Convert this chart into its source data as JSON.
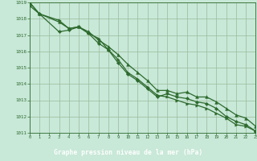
{
  "title": "Graphe pression niveau de la mer (hPa)",
  "bg_color": "#c8e8d8",
  "plot_bg_color": "#c8e8d8",
  "label_bg_color": "#3a7a3a",
  "label_text_color": "#ffffff",
  "line_color": "#2d6a2d",
  "grid_color": "#99bb99",
  "xlim": [
    0,
    23
  ],
  "ylim": [
    1011,
    1019
  ],
  "xticks": [
    0,
    1,
    2,
    3,
    4,
    5,
    6,
    7,
    8,
    9,
    10,
    11,
    12,
    13,
    14,
    15,
    16,
    17,
    18,
    19,
    20,
    21,
    22,
    23
  ],
  "yticks": [
    1011,
    1012,
    1013,
    1014,
    1015,
    1016,
    1017,
    1018,
    1019
  ],
  "series1_x": [
    0,
    1,
    3,
    4,
    5,
    6,
    7,
    8,
    9,
    10,
    11,
    12,
    13,
    14,
    15,
    16,
    17,
    18,
    19,
    20,
    21,
    22,
    23
  ],
  "series1_y": [
    1019.0,
    1018.3,
    1017.8,
    1017.4,
    1017.5,
    1017.2,
    1016.7,
    1016.3,
    1015.8,
    1015.2,
    1014.7,
    1014.2,
    1013.6,
    1013.6,
    1013.4,
    1013.5,
    1013.2,
    1013.2,
    1012.9,
    1012.5,
    1012.1,
    1011.9,
    1011.4
  ],
  "series2_x": [
    0,
    1,
    3,
    4,
    5,
    6,
    7,
    8,
    9,
    10,
    11,
    12,
    13,
    14,
    15,
    16,
    17,
    18,
    19,
    20,
    21,
    22,
    23
  ],
  "series2_y": [
    1018.8,
    1018.3,
    1017.2,
    1017.3,
    1017.5,
    1017.1,
    1016.5,
    1016.1,
    1015.3,
    1014.6,
    1014.2,
    1013.7,
    1013.2,
    1013.4,
    1013.2,
    1013.1,
    1012.9,
    1012.8,
    1012.5,
    1012.0,
    1011.7,
    1011.5,
    1011.1
  ],
  "series3_x": [
    0,
    1,
    3,
    4,
    5,
    6,
    7,
    8,
    9,
    10,
    11,
    12,
    13,
    14,
    15,
    16,
    17,
    18,
    19,
    20,
    21,
    22,
    23
  ],
  "series3_y": [
    1019.0,
    1018.3,
    1017.9,
    1017.4,
    1017.5,
    1017.1,
    1016.8,
    1016.1,
    1015.5,
    1014.7,
    1014.3,
    1013.8,
    1013.3,
    1013.2,
    1013.0,
    1012.8,
    1012.7,
    1012.5,
    1012.2,
    1011.9,
    1011.5,
    1011.4,
    1011.1
  ]
}
